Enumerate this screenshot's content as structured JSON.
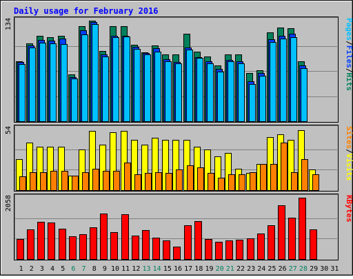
{
  "chart_data": {
    "type": "bar",
    "title": "Daily usage for February 2016",
    "colors": {
      "background": "#C0C0C0",
      "title": "#0000FF",
      "grid": "#808080",
      "hits": "#00805C",
      "files": "#0040FF",
      "pages": "#00C0FF",
      "visits": "#FFFF00",
      "sites": "#FF8000",
      "kbytes": "#FF0000",
      "weekend_label": "#00805C"
    },
    "x": {
      "days": [
        "1",
        "2",
        "3",
        "4",
        "5",
        "6",
        "7",
        "8",
        "9",
        "10",
        "11",
        "12",
        "13",
        "14",
        "15",
        "16",
        "17",
        "18",
        "19",
        "20",
        "21",
        "22",
        "23",
        "24",
        "25",
        "26",
        "27",
        "28",
        "29",
        "30",
        "31"
      ],
      "weekend_days": [
        "6",
        "7",
        "13",
        "14",
        "20",
        "21",
        "27",
        "28"
      ]
    },
    "panels": [
      {
        "id": "hits-files-pages",
        "max_label": "134",
        "ymax": 134,
        "series_labels": [
          {
            "name": "Hits",
            "color": "#00805C"
          },
          {
            "name": "Files",
            "color": "#0040FF"
          },
          {
            "name": "Pages",
            "color": "#00C0FF"
          }
        ],
        "separator": "/",
        "series": [
          {
            "name": "Hits",
            "values": [
              80,
              104,
              114,
              112,
              114,
              62,
              127,
              134,
              94,
              127,
              127,
              102,
              92,
              101,
              89,
              89,
              117,
              93,
              86,
              74,
              89,
              89,
              64,
              68,
              118,
              125,
              124,
              80,
              0,
              0,
              0
            ]
          },
          {
            "name": "Files",
            "values": [
              79,
              101,
              108,
              107,
              110,
              59,
              121,
              132,
              89,
              114,
              114,
              99,
              91,
              97,
              83,
              79,
              98,
              85,
              80,
              70,
              82,
              80,
              53,
              64,
              109,
              114,
              117,
              74,
              0,
              0,
              0
            ]
          },
          {
            "name": "Pages",
            "values": [
              76,
              98,
              105,
              104,
              103,
              57,
              116,
              129,
              86,
              112,
              113,
              96,
              89,
              93,
              80,
              77,
              95,
              84,
              77,
              66,
              80,
              77,
              50,
              61,
              106,
              110,
              112,
              71,
              0,
              0,
              0
            ]
          }
        ]
      },
      {
        "id": "visits-sites",
        "max_label": "54",
        "ymax": 54,
        "series_labels": [
          {
            "name": "Visits",
            "color": "#FFFF00"
          },
          {
            "name": "Sites",
            "color": "#FF8000"
          }
        ],
        "separator": "/",
        "series": [
          {
            "name": "Visits",
            "values": [
              27,
              42,
              38,
              38,
              38,
              13,
              36,
              52,
              40,
              51,
              52,
              44,
              40,
              46,
              44,
              44,
              44,
              38,
              36,
              30,
              33,
              19,
              15,
              23,
              47,
              49,
              44,
              53,
              18,
              0,
              0
            ]
          },
          {
            "name": "Sites",
            "values": [
              12,
              16,
              16,
              17,
              17,
              13,
              16,
              19,
              17,
              17,
              24,
              14,
              15,
              16,
              15,
              18,
              22,
              20,
              15,
              11,
              14,
              14,
              16,
              23,
              23,
              42,
              16,
              27,
              14,
              0,
              0
            ]
          }
        ]
      },
      {
        "id": "kbytes",
        "max_label": "2058",
        "ymax": 2058,
        "series_labels": [
          {
            "name": "KBytes",
            "color": "#FF0000"
          }
        ],
        "separator": "",
        "series": [
          {
            "name": "KBytes",
            "values": [
              667,
              1000,
              1248,
              1215,
              1028,
              768,
              826,
              1070,
              1525,
              898,
              1500,
              780,
              970,
              713,
              624,
              423,
              1122,
              1266,
              670,
              570,
              620,
              640,
              693,
              848,
              1132,
              1802,
              1392,
              2058,
              1002,
              0,
              0
            ]
          }
        ]
      }
    ]
  }
}
